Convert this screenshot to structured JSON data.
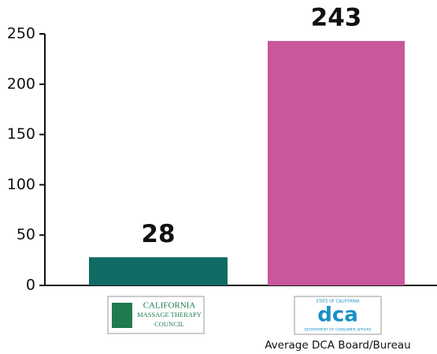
{
  "chart_data": {
    "type": "bar",
    "categories": [
      null,
      "Average DCA Board/Bureau"
    ],
    "values": [
      28,
      243
    ],
    "colors": [
      "#0f6b63",
      "#c9579b"
    ],
    "ylim": [
      0,
      250
    ],
    "yticks": [
      0,
      50,
      100,
      150,
      200,
      250
    ],
    "category_logos": [
      {
        "lines": [
          "CALIFORNIA",
          "MASSAGE THERAPY",
          "COUNCIL"
        ],
        "color": "#1f7a4d"
      },
      {
        "lines": [
          "STATE OF CALIFORNIA",
          "dca",
          "DEPARTMENT OF CONSUMER AFFAIRS"
        ],
        "color": "#1a8fc4"
      }
    ]
  }
}
